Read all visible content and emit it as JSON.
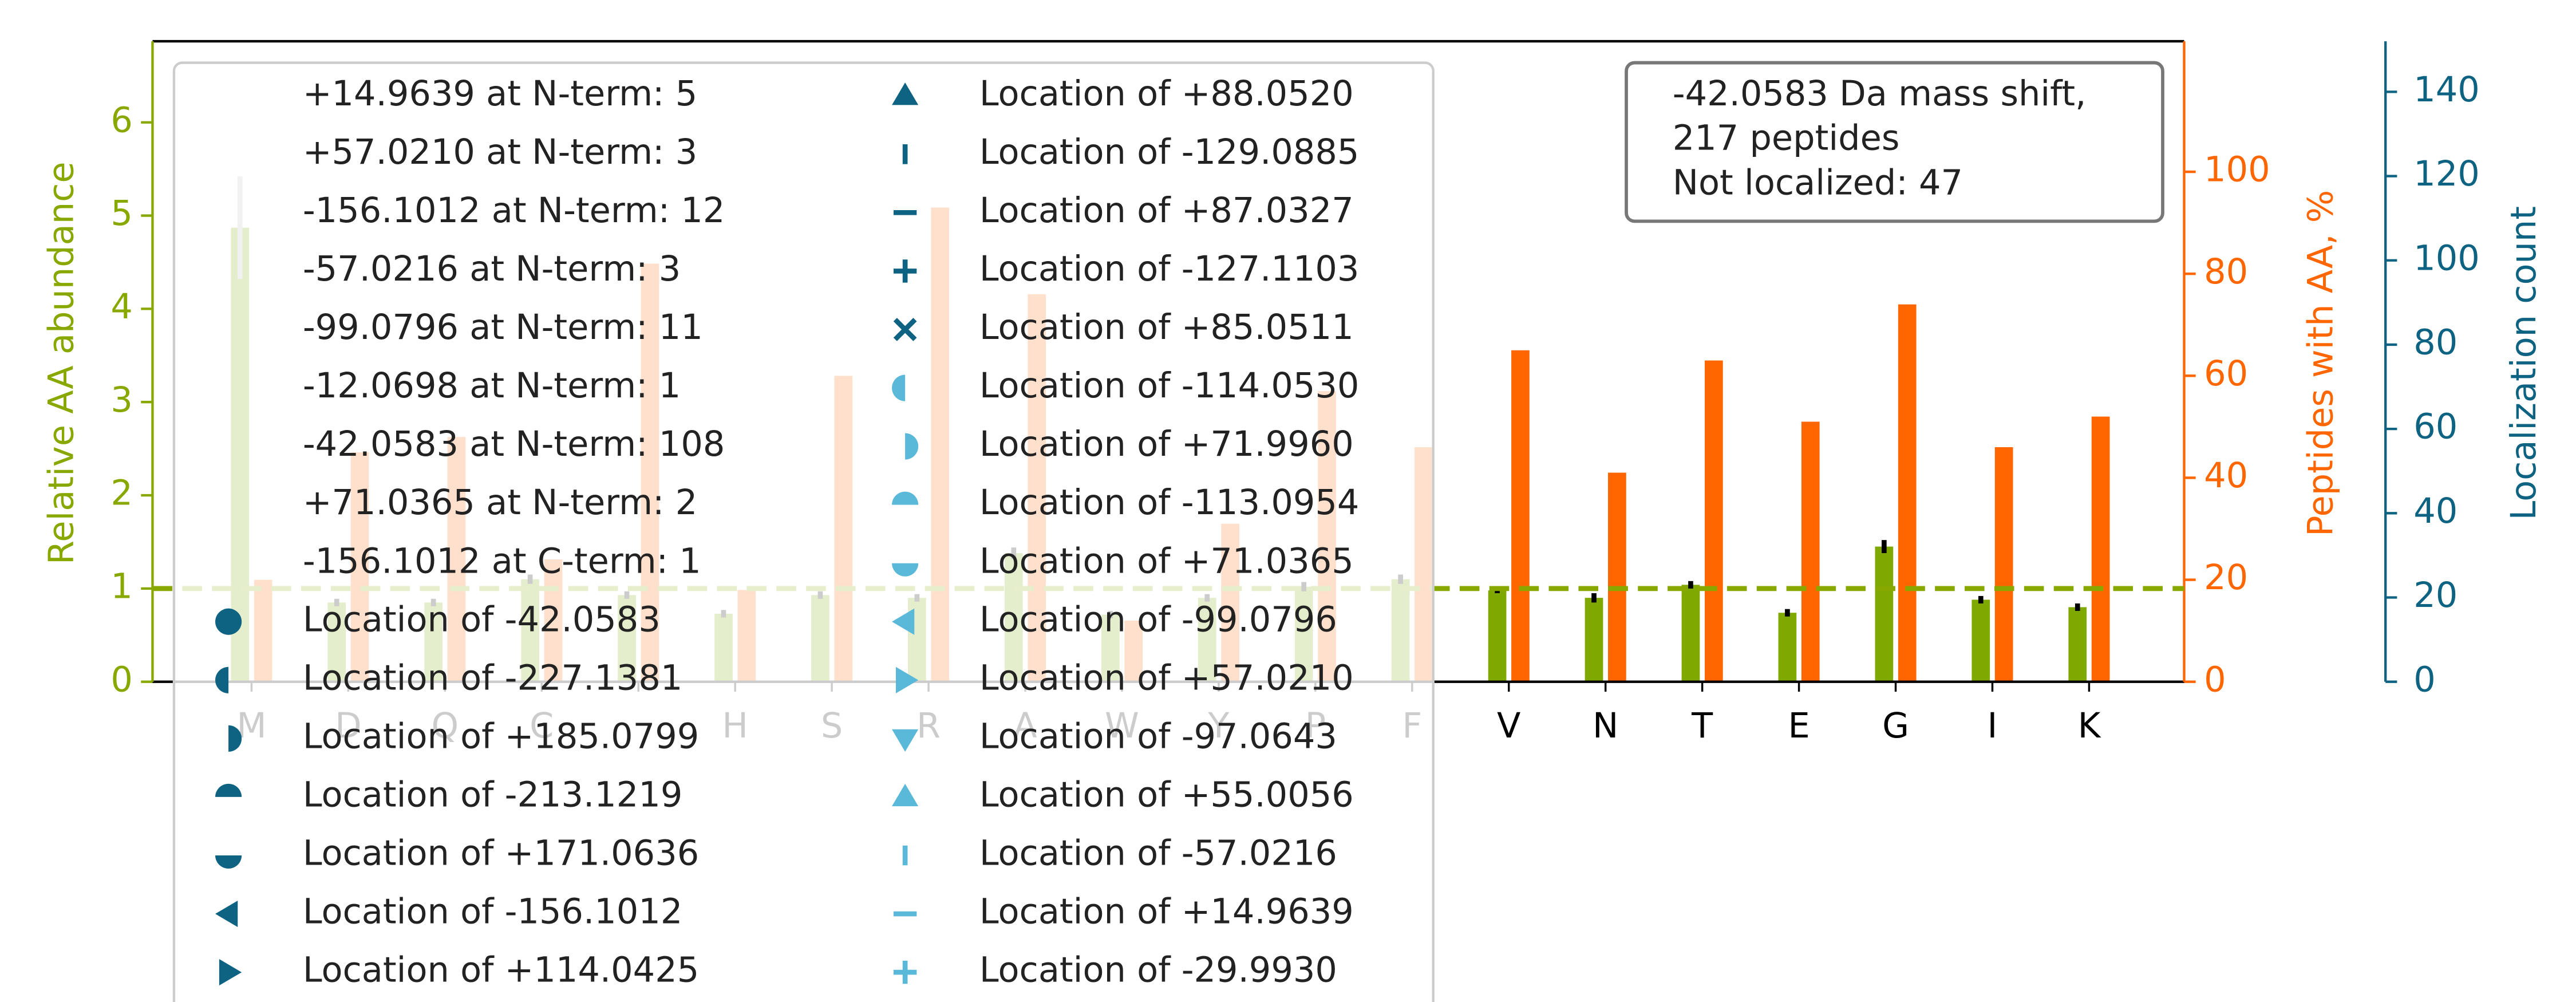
{
  "chart_data": {
    "type": "bar",
    "categories": [
      "M",
      "D",
      "Q",
      "C",
      null,
      "H",
      "S",
      "R",
      "A",
      "W",
      "Y",
      "P",
      "F",
      "V",
      "N",
      "T",
      "E",
      "G",
      "I",
      "K"
    ],
    "series": [
      {
        "color": "#7fa800",
        "axis": "y",
        "values": [
          4.87,
          0.85,
          0.85,
          1.1,
          0.93,
          0.73,
          0.93,
          0.9,
          1.38,
          0.72,
          0.9,
          1.02,
          1.1,
          0.98,
          0.9,
          1.04,
          0.74,
          1.45,
          0.88,
          0.8
        ],
        "errors": [
          0.55,
          0.04,
          0.04,
          0.05,
          0.04,
          0.04,
          0.04,
          0.04,
          0.06,
          0.04,
          0.04,
          0.05,
          0.05,
          0.03,
          0.05,
          0.04,
          0.04,
          0.07,
          0.04,
          0.04
        ]
      },
      {
        "color": "#ff6600",
        "axis": "y2",
        "values": [
          20,
          45,
          48,
          24,
          82,
          18,
          60,
          93,
          76,
          12,
          31,
          57,
          46,
          65,
          41,
          63,
          51,
          74,
          46,
          52
        ]
      }
    ],
    "ylabel": "Relative AA abundance",
    "y2label": "Peptides with AA, %",
    "y3label": "Localization count",
    "ylim": [
      0,
      6.87
    ],
    "yticks": [
      0,
      1,
      2,
      3,
      4,
      5,
      6
    ],
    "y2lim": [
      0,
      125.6
    ],
    "y2ticks": [
      0,
      20,
      40,
      60,
      80,
      100
    ],
    "y3lim": [
      0,
      152
    ],
    "y3ticks": [
      0,
      20,
      40,
      60,
      80,
      100,
      120,
      140
    ],
    "hline": 1,
    "annotation": [
      "-42.0583 Da mass shift,",
      "217 peptides",
      "Not localized: 47"
    ],
    "legend": [
      {
        "label": "+14.9639 at N-term: 5",
        "marker": "none"
      },
      {
        "label": "+57.0210 at N-term: 3",
        "marker": "none"
      },
      {
        "label": "-156.1012 at N-term: 12",
        "marker": "none"
      },
      {
        "label": "-57.0216 at N-term: 3",
        "marker": "none"
      },
      {
        "label": "-99.0796 at N-term: 11",
        "marker": "none"
      },
      {
        "label": "-12.0698 at N-term: 1",
        "marker": "none"
      },
      {
        "label": "-42.0583 at N-term: 108",
        "marker": "none"
      },
      {
        "label": "+71.0365 at N-term: 2",
        "marker": "none"
      },
      {
        "label": "-156.1012 at C-term: 1",
        "marker": "none"
      },
      {
        "label": "Location of -42.0583",
        "marker": "circle",
        "color": "#0e6282"
      },
      {
        "label": "Location of -227.1381",
        "marker": "half-left",
        "color": "#0e6282"
      },
      {
        "label": "Location of +185.0799",
        "marker": "half-right",
        "color": "#0e6282"
      },
      {
        "label": "Location of -213.1219",
        "marker": "half-top",
        "color": "#0e6282"
      },
      {
        "label": "Location of +171.0636",
        "marker": "half-bottom",
        "color": "#0e6282"
      },
      {
        "label": "Location of -156.1012",
        "marker": "tri-left",
        "color": "#0e6282"
      },
      {
        "label": "Location of +114.0425",
        "marker": "tri-right",
        "color": "#0e6282"
      },
      {
        "label": "Location of +88.0520",
        "marker": "tri-up",
        "color": "#0e6282"
      },
      {
        "label": "Location of -129.0885",
        "marker": "vline",
        "color": "#0e6282"
      },
      {
        "label": "Location of +87.0327",
        "marker": "hline",
        "color": "#0e6282"
      },
      {
        "label": "Location of -127.1103",
        "marker": "plus",
        "color": "#0e6282"
      },
      {
        "label": "Location of +85.0511",
        "marker": "x",
        "color": "#0e6282"
      },
      {
        "label": "Location of -114.0530",
        "marker": "half-left",
        "color": "#5ab8d8"
      },
      {
        "label": "Location of +71.9960",
        "marker": "half-right",
        "color": "#5ab8d8"
      },
      {
        "label": "Location of -113.0954",
        "marker": "half-top",
        "color": "#5ab8d8"
      },
      {
        "label": "Location of +71.0365",
        "marker": "half-bottom",
        "color": "#5ab8d8"
      },
      {
        "label": "Location of -99.0796",
        "marker": "tri-left",
        "color": "#5ab8d8"
      },
      {
        "label": "Location of +57.0210",
        "marker": "tri-right",
        "color": "#5ab8d8"
      },
      {
        "label": "Location of -97.0643",
        "marker": "tri-down",
        "color": "#5ab8d8"
      },
      {
        "label": "Location of +55.0056",
        "marker": "tri-up",
        "color": "#5ab8d8"
      },
      {
        "label": "Location of -57.0216",
        "marker": "vline",
        "color": "#5ab8d8"
      },
      {
        "label": "Location of +14.9639",
        "marker": "hline",
        "color": "#5ab8d8"
      },
      {
        "label": "Location of -29.9930",
        "marker": "plus",
        "color": "#5ab8d8"
      }
    ]
  }
}
